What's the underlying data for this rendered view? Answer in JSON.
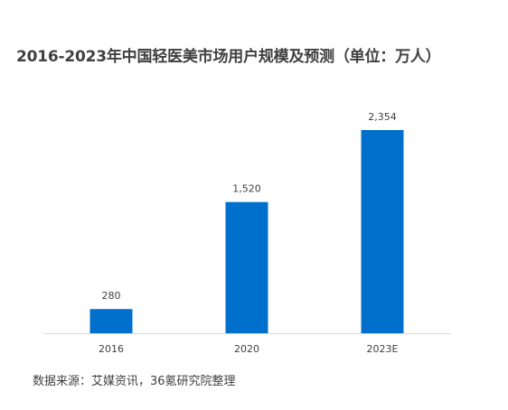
{
  "chart_data": {
    "type": "bar",
    "title": "2016-2023年中国轻医美市场用户规模及预测（单位：万人）",
    "categories": [
      "2016",
      "2020",
      "2023E"
    ],
    "values": [
      280,
      1520,
      2354
    ],
    "value_labels": [
      "280",
      "1,520",
      "2,354"
    ],
    "xlabel": "",
    "ylabel": "",
    "ylim": [
      0,
      2500
    ],
    "grid": false,
    "legend": "none",
    "bar_color": "#0070CC",
    "axis_color": "#D9D9D9"
  },
  "source": "数据来源：艾媒资讯，36氪研究院整理"
}
